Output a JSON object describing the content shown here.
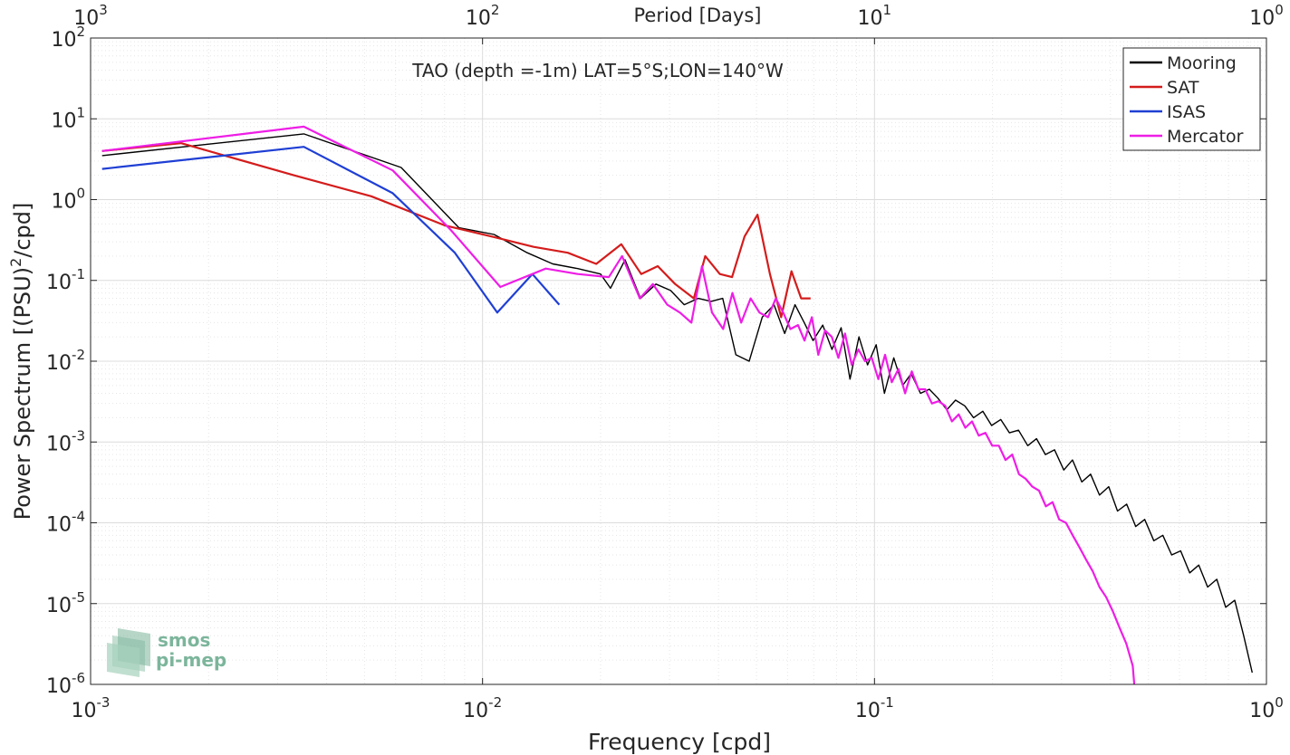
{
  "chart_data": {
    "type": "line",
    "title": "TAO (depth =-1m) LAT=5°S;LON=140°W",
    "xlabel": "Frequency [cpd]",
    "ylabel": "Power Spectrum [(PSU)",
    "ylabel_sup": "2",
    "ylabel_tail": "/cpd]",
    "top_xlabel": "Period [Days]",
    "x_scale": "log",
    "y_scale": "log",
    "xlim": [
      0.001,
      1
    ],
    "ylim": [
      1e-06,
      100
    ],
    "grid": true,
    "legend_position": "top-right",
    "bottom_ticks": [
      {
        "value": 0.001,
        "base": "10",
        "exp": "-3"
      },
      {
        "value": 0.01,
        "base": "10",
        "exp": "-2"
      },
      {
        "value": 0.1,
        "base": "10",
        "exp": "-1"
      },
      {
        "value": 1,
        "base": "10",
        "exp": "0"
      }
    ],
    "top_ticks": [
      {
        "value": 0.001,
        "base": "10",
        "exp": "3"
      },
      {
        "value": 0.01,
        "base": "10",
        "exp": "2"
      },
      {
        "value": 0.1,
        "base": "10",
        "exp": "1"
      },
      {
        "value": 1,
        "base": "10",
        "exp": "0"
      }
    ],
    "y_ticks": [
      {
        "value": 100,
        "base": "10",
        "exp": "2"
      },
      {
        "value": 10,
        "base": "10",
        "exp": "1"
      },
      {
        "value": 1,
        "base": "10",
        "exp": "0"
      },
      {
        "value": 0.1,
        "base": "10",
        "exp": "-1"
      },
      {
        "value": 0.01,
        "base": "10",
        "exp": "-2"
      },
      {
        "value": 0.001,
        "base": "10",
        "exp": "-3"
      },
      {
        "value": 0.0001,
        "base": "10",
        "exp": "-4"
      },
      {
        "value": 1e-05,
        "base": "10",
        "exp": "-5"
      },
      {
        "value": 1e-06,
        "base": "10",
        "exp": "-6"
      }
    ],
    "series": [
      {
        "name": "Mooring",
        "color": "#000000",
        "width": 1.4,
        "x": [
          0.00107,
          0.0035,
          0.0062,
          0.0087,
          0.0107,
          0.013,
          0.0151,
          0.0175,
          0.02,
          0.0212,
          0.0231,
          0.0253,
          0.0277,
          0.0302,
          0.0327,
          0.0355,
          0.0383,
          0.041,
          0.0443,
          0.0479,
          0.0517,
          0.0554,
          0.059,
          0.0627,
          0.0662,
          0.0697,
          0.0738,
          0.0779,
          0.0822,
          0.0866,
          0.0913,
          0.096,
          0.101,
          0.106,
          0.112,
          0.118,
          0.124,
          0.131,
          0.138,
          0.145,
          0.153,
          0.161,
          0.17,
          0.179,
          0.189,
          0.199,
          0.21,
          0.221,
          0.233,
          0.246,
          0.259,
          0.273,
          0.288,
          0.304,
          0.32,
          0.338,
          0.356,
          0.375,
          0.396,
          0.417,
          0.44,
          0.464,
          0.489,
          0.516,
          0.544,
          0.573,
          0.604,
          0.637,
          0.672,
          0.708,
          0.747,
          0.787,
          0.83,
          0.875,
          0.92
        ],
        "y": [
          3.5,
          6.5,
          2.5,
          0.45,
          0.37,
          0.22,
          0.16,
          0.14,
          0.12,
          0.08,
          0.18,
          0.06,
          0.09,
          0.075,
          0.05,
          0.06,
          0.055,
          0.06,
          0.012,
          0.01,
          0.035,
          0.05,
          0.022,
          0.05,
          0.03,
          0.018,
          0.028,
          0.014,
          0.026,
          0.006,
          0.02,
          0.009,
          0.016,
          0.004,
          0.011,
          0.005,
          0.007,
          0.004,
          0.0045,
          0.0035,
          0.0025,
          0.0033,
          0.0028,
          0.002,
          0.0024,
          0.0016,
          0.0019,
          0.0013,
          0.0014,
          0.0009,
          0.0011,
          0.0007,
          0.0008,
          0.00045,
          0.0006,
          0.00032,
          0.0004,
          0.00022,
          0.00028,
          0.00014,
          0.00017,
          9e-05,
          0.00011,
          6e-05,
          7e-05,
          4e-05,
          4.5e-05,
          2.4e-05,
          3e-05,
          1.6e-05,
          2e-05,
          9e-06,
          1.1e-05,
          4e-06,
          1.4e-06
        ]
      },
      {
        "name": "SAT",
        "color": "#d41c1c",
        "width": 2.2,
        "x": [
          0.00107,
          0.0017,
          0.0033,
          0.0052,
          0.008,
          0.0108,
          0.0135,
          0.0165,
          0.0195,
          0.0226,
          0.0254,
          0.028,
          0.031,
          0.0346,
          0.037,
          0.0403,
          0.0433,
          0.0466,
          0.0503,
          0.0541,
          0.0578,
          0.0614,
          0.065,
          0.0687
        ],
        "y": [
          4.0,
          5.0,
          2.0,
          1.1,
          0.48,
          0.34,
          0.26,
          0.22,
          0.16,
          0.28,
          0.12,
          0.15,
          0.09,
          0.06,
          0.2,
          0.12,
          0.11,
          0.35,
          0.65,
          0.12,
          0.035,
          0.13,
          0.06,
          0.06
        ]
      },
      {
        "name": "ISAS",
        "color": "#1f3fd4",
        "width": 2.2,
        "x": [
          0.00107,
          0.0035,
          0.0059,
          0.0085,
          0.0109,
          0.0134,
          0.0157
        ],
        "y": [
          2.4,
          4.5,
          1.2,
          0.22,
          0.04,
          0.12,
          0.05
        ]
      },
      {
        "name": "Mercator",
        "color": "#ee1ee6",
        "width": 2.2,
        "x": [
          0.00107,
          0.0035,
          0.0059,
          0.0083,
          0.0111,
          0.0145,
          0.0175,
          0.021,
          0.0227,
          0.0252,
          0.0272,
          0.0296,
          0.0319,
          0.0341,
          0.0363,
          0.0385,
          0.0411,
          0.0434,
          0.0457,
          0.0483,
          0.0509,
          0.0535,
          0.056,
          0.0585,
          0.061,
          0.0638,
          0.0663,
          0.0692,
          0.0719,
          0.0748,
          0.0778,
          0.0809,
          0.0841,
          0.0875,
          0.091,
          0.0946,
          0.0984,
          0.1023,
          0.1064,
          0.1107,
          0.1151,
          0.1197,
          0.1245,
          0.1295,
          0.1347,
          0.1401,
          0.1457,
          0.1515,
          0.1576,
          0.164,
          0.1705,
          0.1774,
          0.1845,
          0.1919,
          0.1996,
          0.2076,
          0.2159,
          0.2246,
          0.2336,
          0.243,
          0.2528,
          0.263,
          0.2736,
          0.2846,
          0.296,
          0.3079,
          0.3203,
          0.3332,
          0.3466,
          0.3606,
          0.375,
          0.39,
          0.4058,
          0.422,
          0.439,
          0.456,
          0.46
        ],
        "y": [
          4.0,
          8.0,
          2.3,
          0.42,
          0.083,
          0.14,
          0.12,
          0.11,
          0.2,
          0.06,
          0.09,
          0.05,
          0.04,
          0.03,
          0.15,
          0.04,
          0.025,
          0.07,
          0.03,
          0.06,
          0.04,
          0.035,
          0.06,
          0.04,
          0.025,
          0.028,
          0.018,
          0.035,
          0.012,
          0.024,
          0.02,
          0.011,
          0.022,
          0.009,
          0.014,
          0.01,
          0.011,
          0.006,
          0.012,
          0.0055,
          0.008,
          0.004,
          0.0075,
          0.0045,
          0.0045,
          0.003,
          0.0032,
          0.0028,
          0.0018,
          0.0022,
          0.0015,
          0.0018,
          0.0012,
          0.0013,
          0.0009,
          0.0009,
          0.0006,
          0.0007,
          0.0004,
          0.00035,
          0.00028,
          0.00025,
          0.00016,
          0.00018,
          0.00011,
          0.0001,
          7e-05,
          5e-05,
          3.5e-05,
          2.5e-05,
          1.6e-05,
          1.2e-05,
          8e-06,
          5e-06,
          3.2e-06,
          1.7e-06,
          1e-06
        ]
      }
    ]
  },
  "logo": {
    "line1": "smos",
    "line2": "pi-mep",
    "color": "#7cb59b"
  }
}
